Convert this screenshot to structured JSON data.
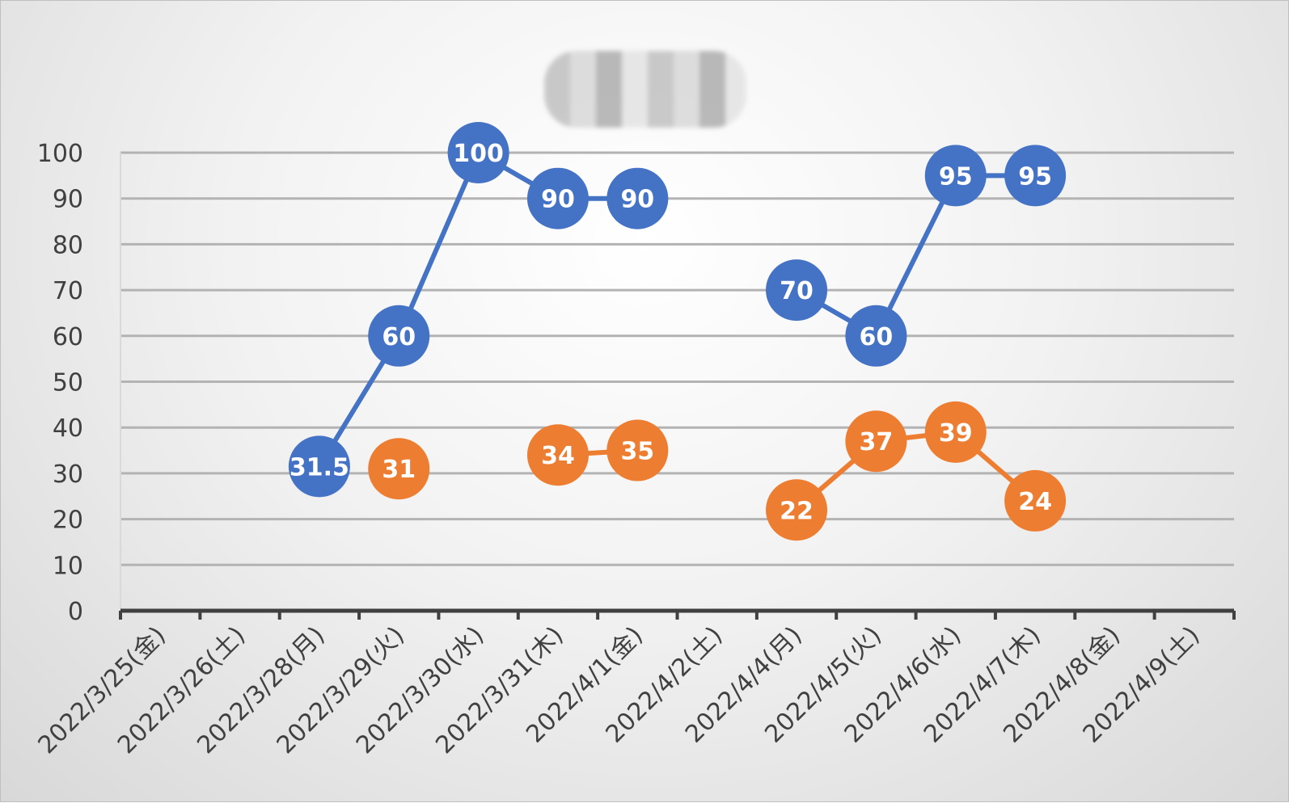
{
  "chart_data": {
    "type": "line",
    "title": "",
    "xlabel": "",
    "ylabel": "",
    "ylim": [
      0,
      100
    ],
    "yticks": [
      0,
      10,
      20,
      30,
      40,
      50,
      60,
      70,
      80,
      90,
      100
    ],
    "grid": true,
    "categories": [
      "2022/3/25(金)",
      "2022/3/26(土)",
      "2022/3/28(月)",
      "2022/3/29(火)",
      "2022/3/30(水)",
      "2022/3/31(木)",
      "2022/4/1(金)",
      "2022/4/2(土)",
      "2022/4/4(月)",
      "2022/4/5(火)",
      "2022/4/6(水)",
      "2022/4/7(木)",
      "2022/4/8(金)",
      "2022/4/9(土)"
    ],
    "series": [
      {
        "color": "#4472C4",
        "values": [
          null,
          null,
          31.5,
          60,
          100,
          90,
          90,
          null,
          70,
          60,
          95,
          95,
          null,
          null
        ]
      },
      {
        "color": "#ED7D31",
        "values": [
          null,
          null,
          null,
          31,
          null,
          34,
          35,
          null,
          22,
          37,
          39,
          24,
          null,
          null
        ]
      }
    ]
  }
}
